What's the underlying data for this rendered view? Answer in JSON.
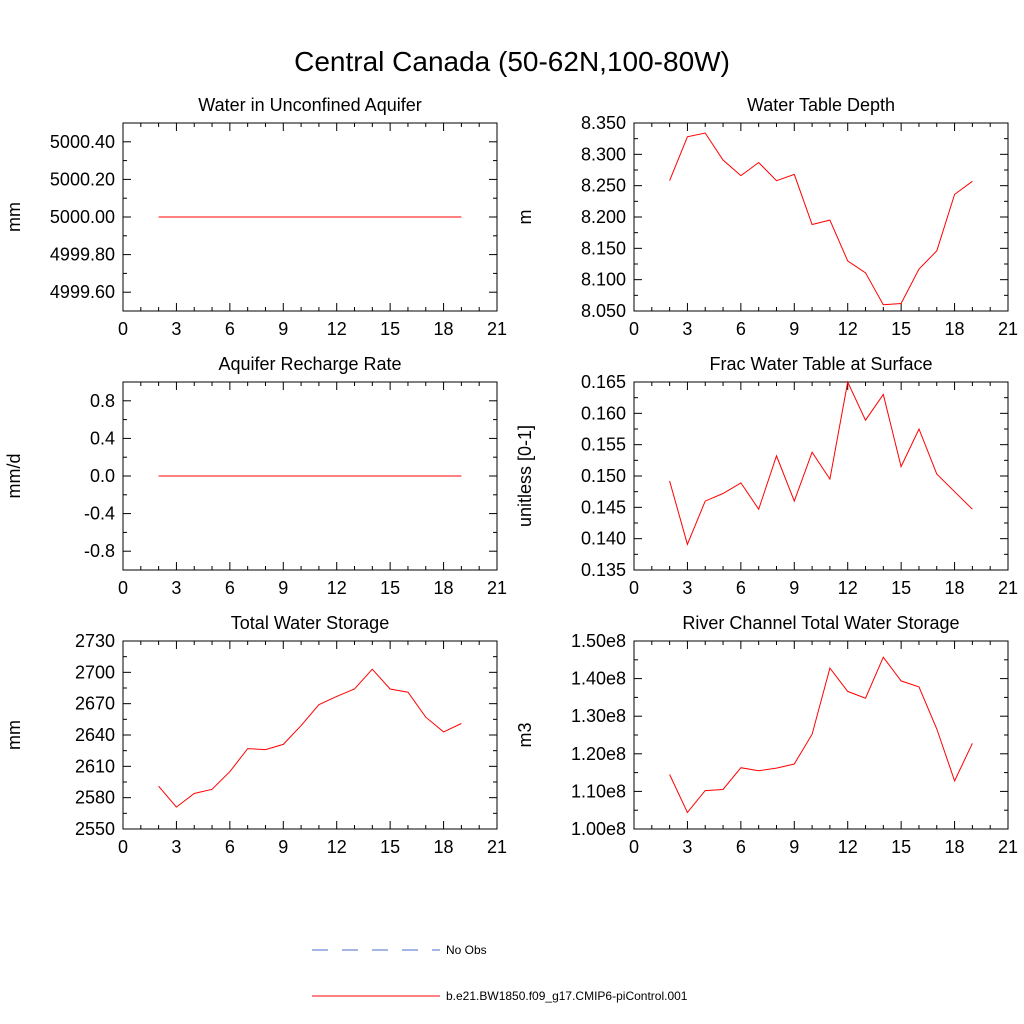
{
  "title": "Central Canada (50-62N,100-80W)",
  "colors": {
    "model_line": "#ff0000",
    "obs_line": "#4a6cc8",
    "axis": "#000000"
  },
  "legend": [
    {
      "label": "No Obs",
      "style": "dashed",
      "color": "#4a6cc8"
    },
    {
      "label": "b.e21.BW1850.f09_g17.CMIP6-piControl.001",
      "style": "solid",
      "color": "#ff0000"
    }
  ],
  "chart_data": [
    {
      "type": "line",
      "title": "Water in Unconfined Aquifer",
      "ylabel": "mm",
      "xlim": [
        0,
        21
      ],
      "xticks": [
        0,
        3,
        6,
        9,
        12,
        15,
        18,
        21
      ],
      "ylim": [
        4999.5,
        5000.5
      ],
      "yticks": [
        4999.6,
        4999.8,
        5000.0,
        5000.2,
        5000.4
      ],
      "yticklabels": [
        "4999.60",
        "4999.80",
        "5000.00",
        "5000.20",
        "5000.40"
      ],
      "x": [
        2,
        3,
        4,
        5,
        6,
        7,
        8,
        9,
        10,
        11,
        12,
        13,
        14,
        15,
        16,
        17,
        18,
        19
      ],
      "y": [
        5000,
        5000,
        5000,
        5000,
        5000,
        5000,
        5000,
        5000,
        5000,
        5000,
        5000,
        5000,
        5000,
        5000,
        5000,
        5000,
        5000,
        5000
      ]
    },
    {
      "type": "line",
      "title": "Water Table Depth",
      "ylabel": "m",
      "xlim": [
        0,
        21
      ],
      "xticks": [
        0,
        3,
        6,
        9,
        12,
        15,
        18,
        21
      ],
      "ylim": [
        8.05,
        8.35
      ],
      "yticks": [
        8.05,
        8.1,
        8.15,
        8.2,
        8.25,
        8.3,
        8.35
      ],
      "yticklabels": [
        "8.050",
        "8.100",
        "8.150",
        "8.200",
        "8.250",
        "8.300",
        "8.350"
      ],
      "x": [
        2,
        3,
        4,
        5,
        6,
        7,
        8,
        9,
        10,
        11,
        12,
        13,
        14,
        15,
        16,
        17,
        18,
        19
      ],
      "y": [
        8.258,
        8.328,
        8.334,
        8.291,
        8.266,
        8.287,
        8.258,
        8.268,
        8.188,
        8.195,
        8.13,
        8.111,
        8.06,
        8.062,
        8.117,
        8.146,
        8.236,
        8.257
      ]
    },
    {
      "type": "line",
      "title": "Aquifer Recharge Rate",
      "ylabel": "mm/d",
      "xlim": [
        0,
        21
      ],
      "xticks": [
        0,
        3,
        6,
        9,
        12,
        15,
        18,
        21
      ],
      "ylim": [
        -1.0,
        1.0
      ],
      "yticks": [
        -0.8,
        -0.4,
        0.0,
        0.4,
        0.8
      ],
      "yticklabels": [
        "-0.8",
        "-0.4",
        "0.0",
        "0.4",
        "0.8"
      ],
      "x": [
        2,
        3,
        4,
        5,
        6,
        7,
        8,
        9,
        10,
        11,
        12,
        13,
        14,
        15,
        16,
        17,
        18,
        19
      ],
      "y": [
        0,
        0,
        0,
        0,
        0,
        0,
        0,
        0,
        0,
        0,
        0,
        0,
        0,
        0,
        0,
        0,
        0,
        0
      ]
    },
    {
      "type": "line",
      "title": "Frac Water Table at Surface",
      "ylabel": "unitless [0-1]",
      "xlim": [
        0,
        21
      ],
      "xticks": [
        0,
        3,
        6,
        9,
        12,
        15,
        18,
        21
      ],
      "ylim": [
        0.135,
        0.165
      ],
      "yticks": [
        0.135,
        0.14,
        0.145,
        0.15,
        0.155,
        0.16,
        0.165
      ],
      "yticklabels": [
        "0.135",
        "0.140",
        "0.145",
        "0.150",
        "0.155",
        "0.160",
        "0.165"
      ],
      "x": [
        2,
        3,
        4,
        5,
        6,
        7,
        8,
        9,
        10,
        11,
        12,
        13,
        14,
        15,
        16,
        17,
        18,
        19
      ],
      "y": [
        0.1492,
        0.1391,
        0.146,
        0.1472,
        0.1489,
        0.1447,
        0.1532,
        0.146,
        0.1538,
        0.1495,
        0.165,
        0.1589,
        0.163,
        0.1515,
        0.1575,
        0.1503,
        0.1475,
        0.1447
      ]
    },
    {
      "type": "line",
      "title": "Total Water Storage",
      "ylabel": "mm",
      "xlim": [
        0,
        21
      ],
      "xticks": [
        0,
        3,
        6,
        9,
        12,
        15,
        18,
        21
      ],
      "ylim": [
        2550,
        2730
      ],
      "yticks": [
        2550,
        2580,
        2610,
        2640,
        2670,
        2700,
        2730
      ],
      "yticklabels": [
        "2550",
        "2580",
        "2610",
        "2640",
        "2670",
        "2700",
        "2730"
      ],
      "x": [
        2,
        3,
        4,
        5,
        6,
        7,
        8,
        9,
        10,
        11,
        12,
        13,
        14,
        15,
        16,
        17,
        18,
        19
      ],
      "y": [
        2591,
        2571,
        2584,
        2588,
        2605,
        2627,
        2626,
        2631,
        2649,
        2669,
        2677,
        2684,
        2703,
        2684,
        2681,
        2657,
        2643,
        2651
      ]
    },
    {
      "type": "line",
      "title": "River Channel Total Water Storage",
      "ylabel": "m3",
      "xlim": [
        0,
        21
      ],
      "xticks": [
        0,
        3,
        6,
        9,
        12,
        15,
        18,
        21
      ],
      "ylim": [
        100000000.0,
        150000000.0
      ],
      "yticks": [
        100000000.0,
        110000000.0,
        120000000.0,
        130000000.0,
        140000000.0,
        150000000.0
      ],
      "yticklabels": [
        "1.00e8",
        "1.10e8",
        "1.20e8",
        "1.30e8",
        "1.40e8",
        "1.50e8"
      ],
      "x": [
        2,
        3,
        4,
        5,
        6,
        7,
        8,
        9,
        10,
        11,
        12,
        13,
        14,
        15,
        16,
        17,
        18,
        19
      ],
      "y": [
        114500000.0,
        104400000.0,
        110200000.0,
        110500000.0,
        116300000.0,
        115500000.0,
        116200000.0,
        117300000.0,
        125200000.0,
        142800000.0,
        136600000.0,
        134800000.0,
        145700000.0,
        139400000.0,
        137800000.0,
        126600000.0,
        112800000.0,
        122800000.0
      ]
    }
  ]
}
